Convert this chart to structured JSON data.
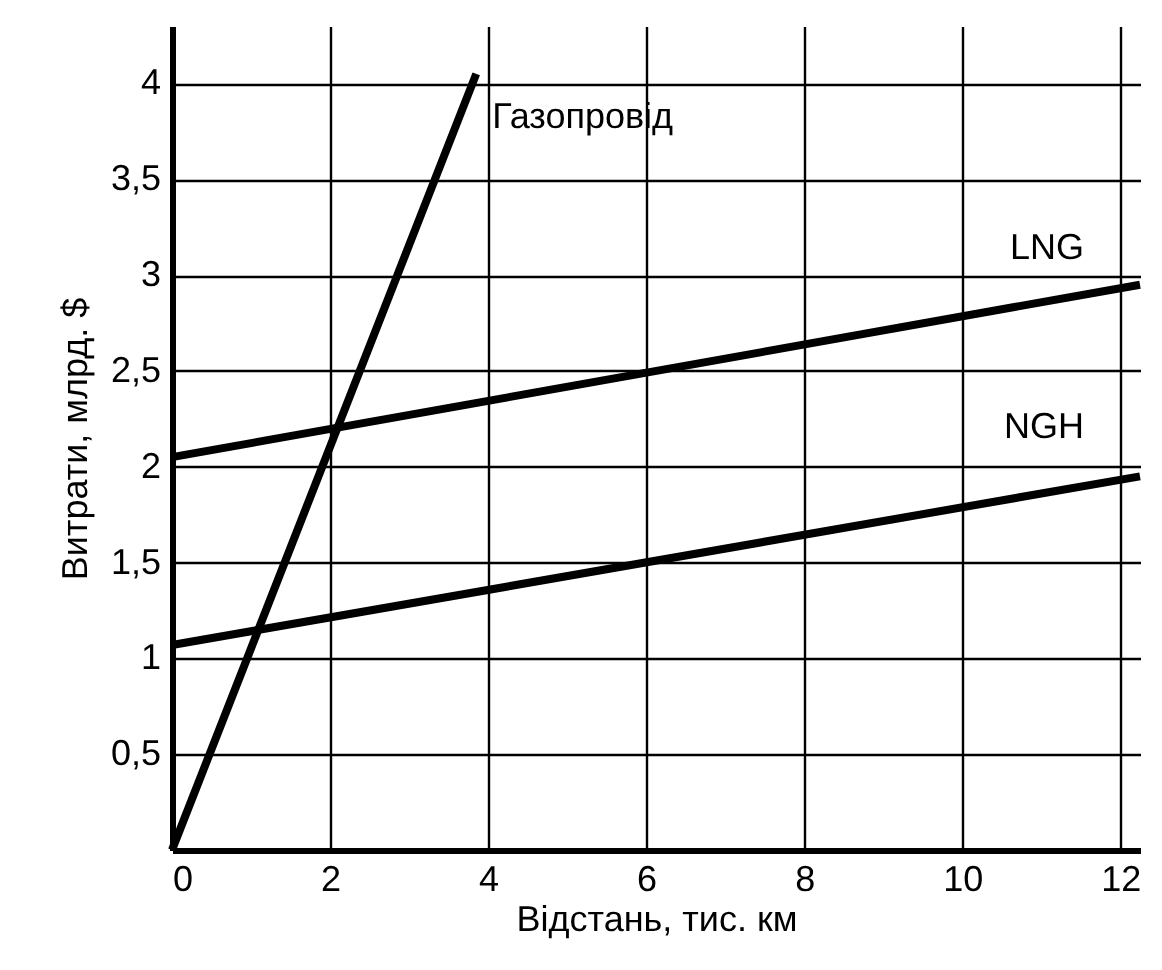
{
  "chart_data": {
    "type": "line",
    "xlabel": "Відстань, тис. км",
    "ylabel": "Витрати, млрд. $",
    "series": [
      {
        "name": "Газопровід",
        "color": "#000000",
        "x": [
          0,
          3.85
        ],
        "values": [
          0,
          4.05
        ]
      },
      {
        "name": "LNG",
        "color": "#000000",
        "x": [
          0,
          12.25
        ],
        "values": [
          2.05,
          2.95
        ]
      },
      {
        "name": "NGH",
        "color": "#000000",
        "x": [
          0,
          12.25
        ],
        "values": [
          1.07,
          1.95
        ]
      }
    ],
    "xlim": [
      0,
      12.25
    ],
    "xticks": [
      0,
      2,
      4,
      6,
      8,
      10,
      12
    ],
    "ylim": [
      0,
      4.3
    ],
    "yticks": [
      {
        "value": 0.5,
        "label": "0,5"
      },
      1,
      {
        "value": 1.5,
        "label": "1,5"
      },
      2,
      {
        "value": 2.5,
        "label": "2,5"
      },
      3,
      {
        "value": 3.5,
        "label": "3,5"
      },
      4
    ],
    "grid": true,
    "marker": "none",
    "line_style": "solid"
  }
}
